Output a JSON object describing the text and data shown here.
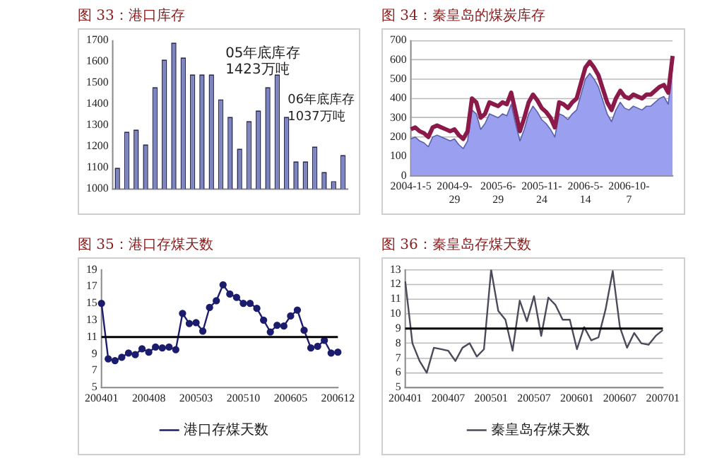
{
  "chart_data": [
    {
      "type": "bar",
      "title": "图 33：港口库存",
      "categories": [
        null,
        null,
        null,
        null,
        null,
        null,
        null,
        null,
        null,
        null,
        null,
        null,
        null,
        null,
        null,
        null,
        null,
        null,
        null,
        null,
        null,
        null,
        null,
        null,
        null
      ],
      "values": [
        1100,
        1270,
        1280,
        1210,
        1480,
        1610,
        1690,
        1620,
        1540,
        1540,
        1540,
        1423,
        1340,
        1190,
        1320,
        1370,
        1480,
        1540,
        1340,
        1130,
        1130,
        1200,
        1080,
        1037,
        1160
      ],
      "color": "#7d84c2",
      "ylim": [
        1000,
        1700
      ],
      "yticks": [
        1000,
        1100,
        1200,
        1300,
        1400,
        1500,
        1600,
        1700
      ],
      "grid": false,
      "annotations": [
        "05年底库存 1423万吨",
        "06年底库存 1037万吨"
      ]
    },
    {
      "type": "area",
      "title": "图 34：秦皇岛的煤炭库存",
      "categories": [
        "2004-1-5",
        null,
        null,
        null,
        null,
        null,
        null,
        null,
        null,
        null,
        "2004-9-29",
        null,
        null,
        null,
        null,
        null,
        null,
        null,
        null,
        null,
        "2005-6-29",
        null,
        null,
        null,
        null,
        null,
        null,
        null,
        null,
        null,
        "2005-11-24",
        null,
        null,
        null,
        null,
        null,
        null,
        null,
        null,
        null,
        "2006-5-14",
        null,
        null,
        null,
        null,
        null,
        null,
        null,
        null,
        null,
        "2006-10-7",
        null,
        null,
        null,
        null,
        null,
        null,
        null,
        null,
        null,
        null
      ],
      "series": [
        {
          "type": "area",
          "color": "#9a9ff0",
          "values": [
            190,
            200,
            180,
            170,
            150,
            200,
            210,
            200,
            190,
            180,
            190,
            160,
            140,
            180,
            340,
            320,
            240,
            270,
            320,
            310,
            300,
            320,
            310,
            370,
            270,
            180,
            240,
            320,
            360,
            330,
            290,
            270,
            240,
            200,
            320,
            310,
            290,
            320,
            340,
            420,
            500,
            530,
            500,
            460,
            390,
            320,
            280,
            340,
            380,
            350,
            340,
            360,
            350,
            340,
            360,
            360,
            380,
            400,
            410,
            370,
            560
          ]
        },
        {
          "type": "line",
          "color": "#8b1a4a",
          "values": [
            240,
            250,
            230,
            220,
            200,
            250,
            260,
            250,
            240,
            230,
            240,
            210,
            190,
            230,
            400,
            380,
            300,
            320,
            380,
            370,
            360,
            380,
            370,
            430,
            330,
            230,
            300,
            380,
            420,
            390,
            350,
            330,
            300,
            250,
            380,
            370,
            350,
            380,
            400,
            480,
            560,
            590,
            560,
            520,
            450,
            380,
            340,
            400,
            440,
            410,
            400,
            420,
            410,
            400,
            420,
            420,
            440,
            460,
            470,
            430,
            620
          ]
        }
      ],
      "ylim": [
        0,
        700
      ],
      "yticks": [
        0,
        100,
        200,
        300,
        400,
        500,
        600,
        700
      ],
      "grid": "y"
    },
    {
      "type": "line",
      "title": "图 35：港口存煤天数",
      "categories": [
        "200401",
        null,
        null,
        null,
        null,
        null,
        null,
        "200408",
        null,
        null,
        null,
        null,
        null,
        null,
        "200503",
        null,
        null,
        null,
        null,
        null,
        null,
        "200510",
        null,
        null,
        null,
        null,
        null,
        null,
        "200605",
        null,
        null,
        null,
        null,
        null,
        null,
        "200612"
      ],
      "series": [
        {
          "name": "港口存煤天数",
          "color": "#1c1c6e",
          "values": [
            15,
            8.4,
            8.2,
            8.6,
            9.1,
            8.9,
            9.6,
            9.2,
            9.8,
            9.7,
            9.8,
            9.5,
            13.8,
            12.6,
            12.7,
            11.7,
            14.5,
            15.3,
            17.2,
            16.1,
            15.7,
            15,
            15,
            14.4,
            13,
            11.6,
            12.4,
            12.3,
            13.5,
            14.2,
            11.8,
            9.7,
            9.9,
            10.6,
            9.1,
            9.2
          ]
        }
      ],
      "ylim": [
        5,
        19
      ],
      "yticks": [
        5,
        7,
        9,
        11,
        13,
        15,
        17,
        19
      ],
      "grid": false,
      "legend": "bottom",
      "marker": "circle",
      "ref_lines": [
        {
          "axis": "y",
          "value": 11,
          "color": "#000000"
        }
      ]
    },
    {
      "type": "line",
      "title": "图 36：秦皇岛存煤天数",
      "categories": [
        "200401",
        null,
        null,
        null,
        null,
        null,
        "200407",
        null,
        null,
        null,
        null,
        null,
        "200501",
        null,
        null,
        null,
        null,
        null,
        "200507",
        null,
        null,
        null,
        null,
        null,
        "200601",
        null,
        null,
        null,
        null,
        null,
        "200607",
        null,
        null,
        null,
        null,
        null,
        "200701"
      ],
      "series": [
        {
          "name": "秦皇岛存煤天数",
          "color": "#4a4a5a",
          "values": [
            12.2,
            8,
            6.8,
            6,
            7.7,
            7.6,
            7.5,
            6.8,
            7.7,
            8,
            7.1,
            7.6,
            13,
            10.2,
            9.6,
            7.5,
            10.9,
            9.5,
            11.2,
            8.5,
            11.1,
            10.6,
            9.6,
            9.6,
            7.6,
            9.1,
            8.2,
            8.4,
            10.3,
            12.9,
            9.1,
            7.7,
            8.7,
            8,
            7.9,
            8.5,
            8.9
          ]
        }
      ],
      "ylim": [
        5,
        13
      ],
      "yticks": [
        5,
        6,
        7,
        8,
        9,
        10,
        11,
        12,
        13
      ],
      "grid": "y",
      "legend": "bottom",
      "marker": "none",
      "ref_lines": [
        {
          "axis": "y",
          "value": 9,
          "color": "#000000"
        }
      ]
    }
  ]
}
